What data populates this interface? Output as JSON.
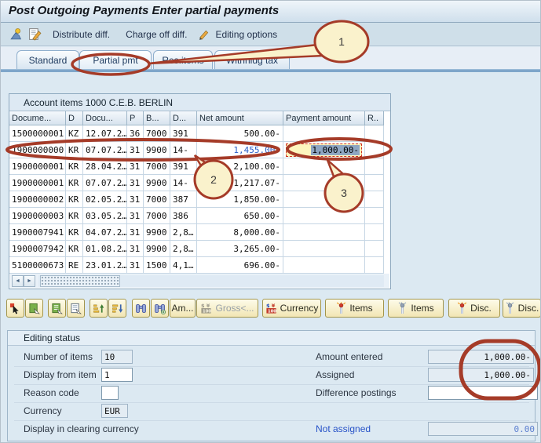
{
  "title": "Post Outgoing Payments Enter partial payments",
  "toolbar": {
    "distribute_label": "Distribute diff.",
    "charge_off_label": "Charge off diff.",
    "editing_options_label": "Editing options"
  },
  "tabs": {
    "labels": [
      "Standard",
      "Partial pmt",
      "Res.items",
      "Withhldg tax"
    ],
    "active": "Partial pmt"
  },
  "panel": {
    "header": "Account items 1000 C.E.B. BERLIN",
    "columns": [
      "Docume...",
      "D",
      "Docu...",
      "P",
      "B...",
      "D...",
      "Net amount",
      "Payment amount",
      "R.."
    ],
    "rows": [
      [
        "1500000001",
        "KZ",
        "12.07.2…",
        "36",
        "7000",
        "391",
        "500.00-",
        "",
        ""
      ],
      [
        "1900000000",
        "KR",
        "07.07.2…",
        "31",
        "9900",
        "14-",
        "1,455.00-",
        "1,000.00-",
        ""
      ],
      [
        "1900000001",
        "KR",
        "28.04.2…",
        "31",
        "7000",
        "391",
        "2,100.00-",
        "",
        ""
      ],
      [
        "1900000001",
        "KR",
        "07.07.2…",
        "31",
        "9900",
        "14-",
        "1,217.07-",
        "",
        ""
      ],
      [
        "1900000002",
        "KR",
        "02.05.2…",
        "31",
        "7000",
        "387",
        "1,850.00-",
        "",
        ""
      ],
      [
        "1900000003",
        "KR",
        "03.05.2…",
        "31",
        "7000",
        "386",
        "650.00-",
        "",
        ""
      ],
      [
        "1900007941",
        "KR",
        "04.07.2…",
        "31",
        "9900",
        "2,8…",
        "8,000.00-",
        "",
        ""
      ],
      [
        "1900007942",
        "KR",
        "01.08.2…",
        "31",
        "9900",
        "2,8…",
        "3,265.00-",
        "",
        ""
      ],
      [
        "5100000673",
        "RE",
        "23.01.2…",
        "31",
        "1500",
        "4,1…",
        "696.00-",
        "",
        ""
      ]
    ],
    "highlight_row": 1,
    "scroll_left_icon": "◄",
    "scroll_right_icon": "►"
  },
  "action_buttons": [
    {
      "name": "select-item",
      "icon": "cursor-select",
      "label": ""
    },
    {
      "name": "select-block",
      "icon": "select-block",
      "label": ""
    },
    {
      "name": "select-all",
      "icon": "select-all",
      "label": ""
    },
    {
      "name": "deselect-all",
      "icon": "deselect-all",
      "label": ""
    },
    {
      "name": "sort-ascending",
      "icon": "sort-asc",
      "label": ""
    },
    {
      "name": "sort-descending",
      "icon": "sort-desc",
      "label": ""
    },
    {
      "name": "find",
      "icon": "find",
      "label": ""
    },
    {
      "name": "find-next",
      "icon": "find-next",
      "label": ""
    },
    {
      "name": "search-amount",
      "icon": "",
      "label": "Am..."
    },
    {
      "name": "gross-display",
      "icon": "money",
      "label": "Gross<...",
      "disabled": true
    },
    {
      "name": "currency-display",
      "icon": "money",
      "label": "Currency"
    },
    {
      "name": "activate-items",
      "icon": "match-lit",
      "label": "Items"
    },
    {
      "name": "deactivate-items",
      "icon": "match-out",
      "label": "Items"
    },
    {
      "name": "activate-discount",
      "icon": "match-lit",
      "label": "Disc."
    },
    {
      "name": "deactivate-discount",
      "icon": "match-out",
      "label": "Disc."
    }
  ],
  "editing_status": {
    "title": "Editing status",
    "left": [
      {
        "label": "Number of items",
        "value": "10",
        "readonly": true
      },
      {
        "label": "Display from item",
        "value": "1",
        "readonly": false
      },
      {
        "label": "Reason code",
        "value": "",
        "readonly": false
      },
      {
        "label": "Currency",
        "value": "EUR",
        "readonly": true
      },
      {
        "label": "Display in clearing currency",
        "value": null
      }
    ],
    "right": [
      {
        "label": "Amount entered",
        "value": "1,000.00-",
        "readonly": true
      },
      {
        "label": "Assigned",
        "value": "1,000.00-",
        "readonly": true
      },
      {
        "label": "Difference postings",
        "value": "",
        "readonly": false
      },
      {
        "label": "Not assigned",
        "value": "0.00",
        "readonly": true,
        "blue": true
      }
    ]
  },
  "annotations": [
    {
      "label": "1"
    },
    {
      "label": "2"
    },
    {
      "label": "3"
    }
  ],
  "colors": {
    "annotation_red": "#a53b28",
    "highlight_blue": "#2a5fc8",
    "field_yellow": "#fdf6be",
    "balloon_fill": "#faf2cc"
  }
}
